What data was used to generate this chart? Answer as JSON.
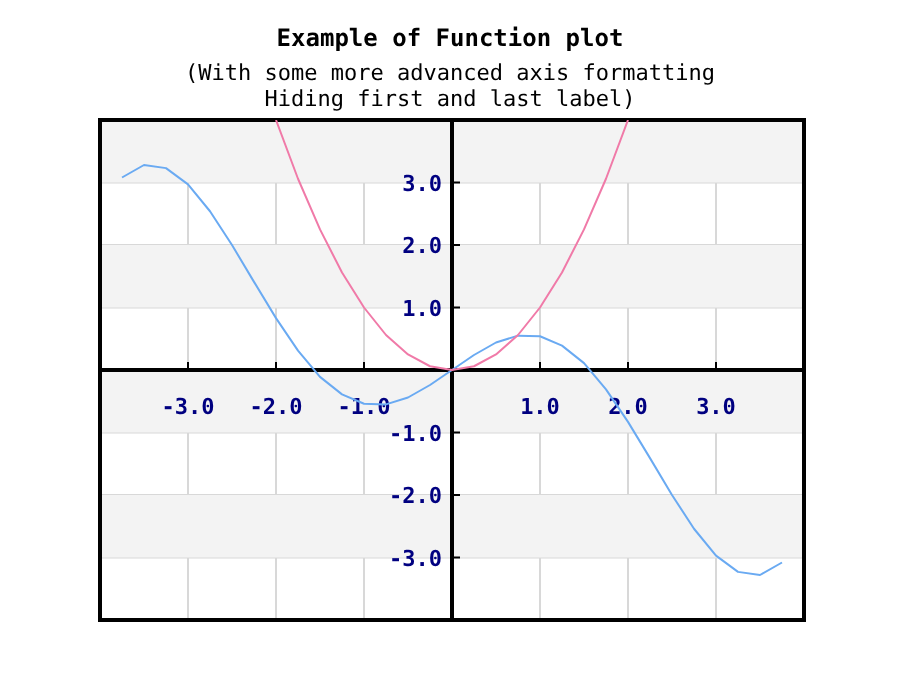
{
  "chart_data": {
    "type": "line",
    "title": "Example of Function plot",
    "subtitle": "(With some more advanced axis formatting\nHiding first and last label)",
    "series": [
      {
        "color": "#6aaaf2",
        "x": [
          -3.75,
          -3.5,
          -3.25,
          -3,
          -2.75,
          -2.5,
          -2.25,
          -2,
          -1.75,
          -1.5,
          -1.25,
          -1,
          -0.75,
          -0.5,
          -0.25,
          0,
          0.25,
          0.5,
          0.75,
          1,
          1.25,
          1.5,
          1.75,
          2,
          2.25,
          2.5,
          2.75,
          3,
          3.25,
          3.5,
          3.75
        ],
        "values": [
          3.08,
          3.28,
          3.23,
          2.97,
          2.54,
          2.0,
          1.41,
          0.83,
          0.31,
          -0.11,
          -0.39,
          -0.54,
          -0.55,
          -0.44,
          -0.24,
          0,
          0.24,
          0.44,
          0.55,
          0.54,
          0.39,
          0.11,
          -0.31,
          -0.83,
          -1.41,
          -2.0,
          -2.54,
          -2.97,
          -3.23,
          -3.28,
          -3.08
        ]
      },
      {
        "color": "#f07aa8",
        "x": [
          -2,
          -1.75,
          -1.5,
          -1.25,
          -1,
          -0.75,
          -0.5,
          -0.25,
          0,
          0.25,
          0.5,
          0.75,
          1,
          1.25,
          1.5,
          1.75,
          2
        ],
        "values": [
          4,
          3.06,
          2.25,
          1.56,
          1,
          0.56,
          0.25,
          0.06,
          0,
          0.06,
          0.25,
          0.56,
          1,
          1.56,
          2.25,
          3.06,
          4
        ]
      }
    ],
    "xlim": [
      -4,
      4
    ],
    "ylim": [
      -4,
      4
    ],
    "xticks": [
      {
        "value": -4,
        "label": null
      },
      {
        "value": -3,
        "label": "-3.0"
      },
      {
        "value": -2,
        "label": "-2.0"
      },
      {
        "value": -1,
        "label": "-1.0"
      },
      {
        "value": 0,
        "label": null
      },
      {
        "value": 1,
        "label": "1.0"
      },
      {
        "value": 2,
        "label": "2.0"
      },
      {
        "value": 3,
        "label": "3.0"
      },
      {
        "value": 4,
        "label": null
      }
    ],
    "yticks": [
      {
        "value": -4,
        "label": null
      },
      {
        "value": -3,
        "label": "-3.0"
      },
      {
        "value": -2,
        "label": "-2.0"
      },
      {
        "value": -1,
        "label": "-1.0"
      },
      {
        "value": 0,
        "label": null
      },
      {
        "value": 1,
        "label": "1.0"
      },
      {
        "value": 2,
        "label": "2.0"
      },
      {
        "value": 3,
        "label": "3.0"
      },
      {
        "value": 4,
        "label": null
      }
    ],
    "grid": true,
    "marker": "none",
    "line_style": "solid"
  }
}
